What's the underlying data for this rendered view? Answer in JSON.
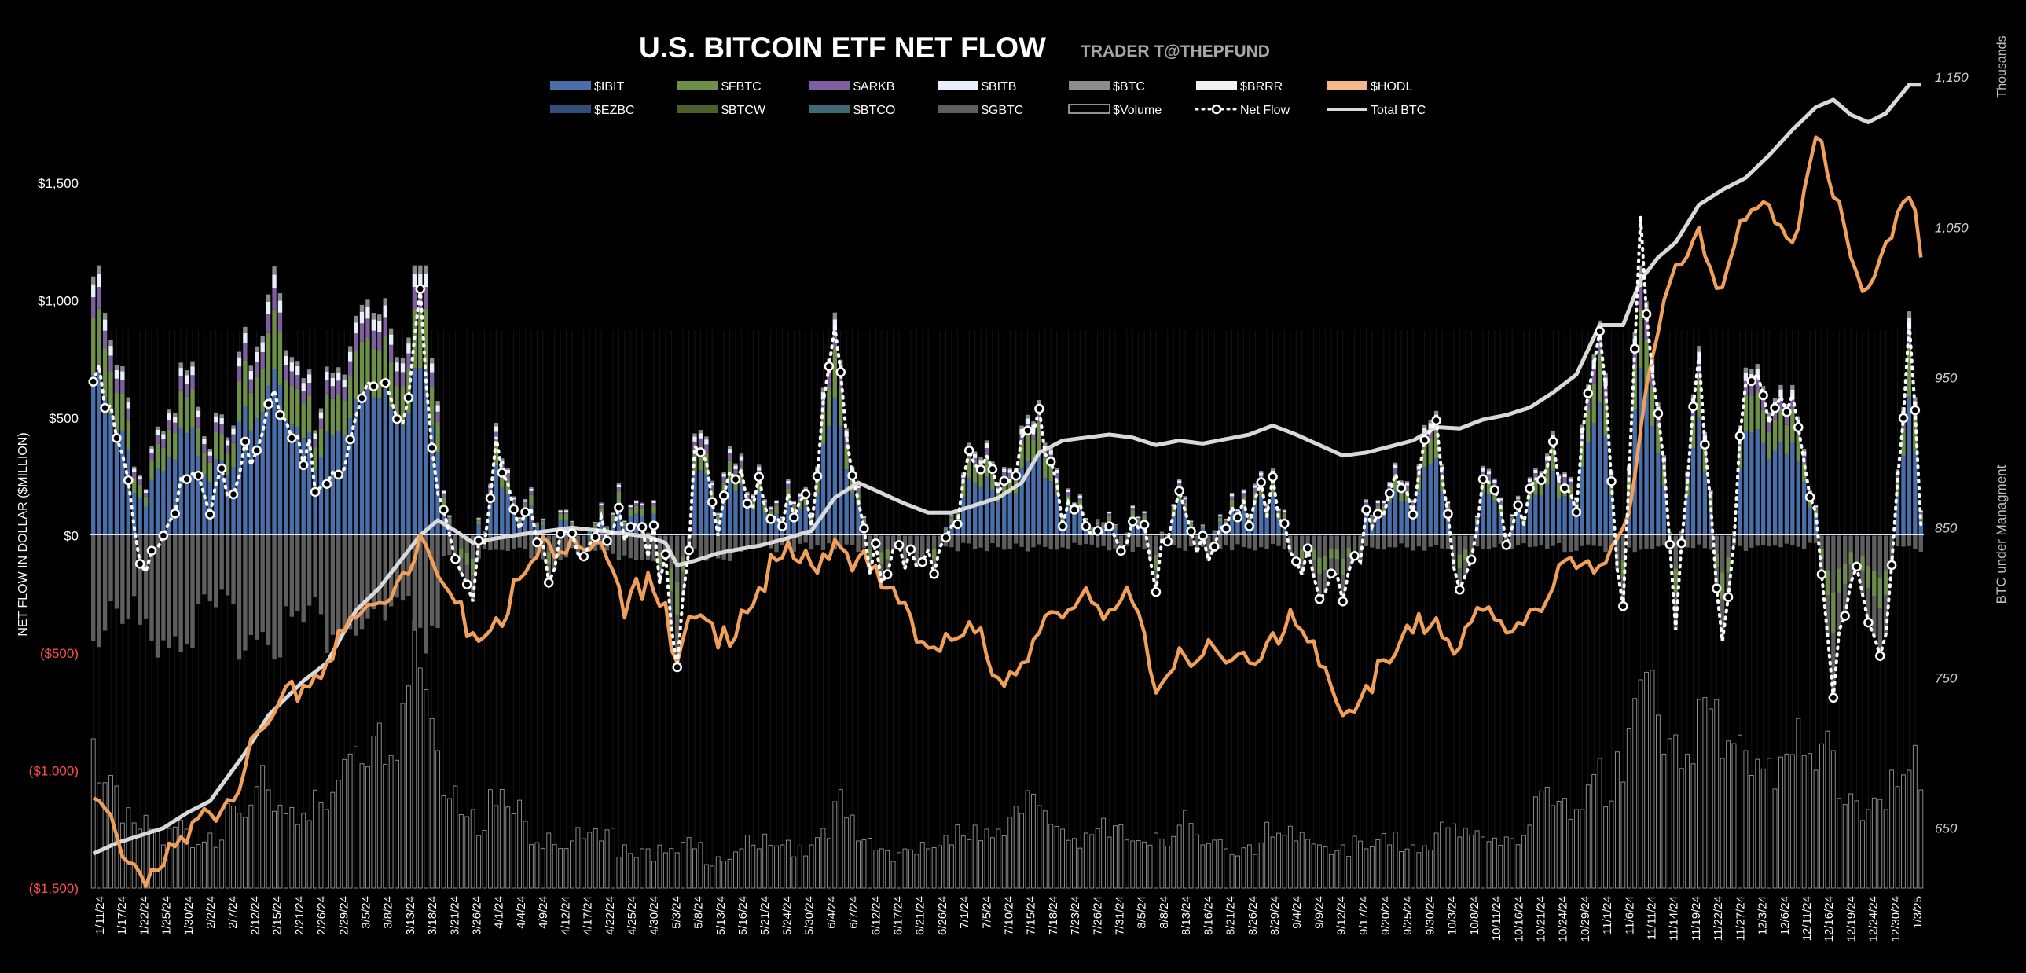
{
  "chart_data": {
    "type": "bar",
    "title": "U.S. BITCOIN ETF NET FLOW",
    "subtitle": "TRADER T@THEPFUND",
    "ylabel": "NET FLOW IN DOLLAR ($MILLION)",
    "y2label": "BTC under Managment",
    "y2unit": "Thousands",
    "ylim": [
      -1500,
      1500
    ],
    "y2lim": [
      610,
      1170
    ],
    "yticks": [
      {
        "v": 1500,
        "label": "$1,500"
      },
      {
        "v": 1000,
        "label": "$1,000"
      },
      {
        "v": 500,
        "label": "$500"
      },
      {
        "v": 0,
        "label": "$0"
      },
      {
        "v": -500,
        "label": "($500)"
      },
      {
        "v": -1000,
        "label": "($1,000)"
      },
      {
        "v": -1500,
        "label": "($1,500)"
      }
    ],
    "y2ticks": [
      {
        "v": 1150,
        "label": "1,150"
      },
      {
        "v": 1050,
        "label": "1,050"
      },
      {
        "v": 950,
        "label": "950"
      },
      {
        "v": 850,
        "label": "850"
      },
      {
        "v": 750,
        "label": "750"
      },
      {
        "v": 650,
        "label": "650"
      }
    ],
    "legend": [
      {
        "name": "$IBIT",
        "kind": "bar",
        "color": "#4a6fa8"
      },
      {
        "name": "$FBTC",
        "kind": "bar",
        "color": "#6e8f4a"
      },
      {
        "name": "$ARKB",
        "kind": "bar",
        "color": "#7d5e9e"
      },
      {
        "name": "$BITB",
        "kind": "bar",
        "color": "#e8eefa"
      },
      {
        "name": "$BTC",
        "kind": "bar",
        "color": "#8c8c8c"
      },
      {
        "name": "$BRRR",
        "kind": "bar",
        "color": "#f2f2f2"
      },
      {
        "name": "$HODL",
        "kind": "bar",
        "color": "#f2b98a"
      },
      {
        "name": "$EZBC",
        "kind": "bar",
        "color": "#2f4e7c"
      },
      {
        "name": "$BTCW",
        "kind": "bar",
        "color": "#4e5e2a"
      },
      {
        "name": "$BTCO",
        "kind": "bar",
        "color": "#3e6a78"
      },
      {
        "name": "$GBTC",
        "kind": "bar",
        "color": "#5e5e5e"
      },
      {
        "name": "$Volume",
        "kind": "outline",
        "color": "#bfbfbf"
      },
      {
        "name": "Net Flow",
        "kind": "dotline",
        "color": "#ffffff"
      },
      {
        "name": "Total BTC",
        "kind": "line",
        "color": "#d9d9d9"
      }
    ],
    "series_colors": {
      "total_btc": "#d9d9d9",
      "hodl_line": "#f0a05a",
      "net_flow": "#ffffff"
    },
    "x_labels": [
      "1/11/24",
      "1/17/24",
      "1/22/24",
      "1/25/24",
      "1/30/24",
      "2/2/24",
      "2/7/24",
      "2/12/24",
      "2/15/24",
      "2/21/24",
      "2/26/24",
      "2/29/24",
      "3/5/24",
      "3/8/24",
      "3/13/24",
      "3/18/24",
      "3/21/24",
      "3/26/24",
      "4/1/24",
      "4/4/24",
      "4/9/24",
      "4/12/24",
      "4/17/24",
      "4/22/24",
      "4/25/24",
      "4/30/24",
      "5/3/24",
      "5/8/24",
      "5/13/24",
      "5/16/24",
      "5/21/24",
      "5/24/24",
      "5/30/24",
      "6/4/24",
      "6/7/24",
      "6/12/24",
      "6/17/24",
      "6/21/24",
      "6/26/24",
      "7/1/24",
      "7/5/24",
      "7/10/24",
      "7/15/24",
      "7/18/24",
      "7/23/24",
      "7/26/24",
      "7/31/24",
      "8/5/24",
      "8/8/24",
      "8/13/24",
      "8/16/24",
      "8/21/24",
      "8/26/24",
      "8/29/24",
      "9/4/24",
      "9/9/24",
      "9/12/24",
      "9/17/24",
      "9/20/24",
      "9/25/24",
      "9/30/24",
      "10/3/24",
      "10/8/24",
      "10/11/24",
      "10/16/24",
      "10/21/24",
      "10/24/24",
      "10/29/24",
      "11/1/24",
      "11/6/24",
      "11/11/24",
      "11/14/24",
      "11/19/24",
      "11/22/24",
      "11/27/24",
      "12/3/24",
      "12/6/24",
      "12/11/24",
      "12/16/24",
      "12/19/24",
      "12/24/24",
      "12/30/24",
      "1/3/25"
    ],
    "keypoints": [
      {
        "i": 0,
        "net": 655,
        "btc": 633,
        "vol": 380,
        "hodl": 670
      },
      {
        "i": 4,
        "net": 415,
        "btc": 640,
        "vol": 260,
        "hodl": 645
      },
      {
        "i": 8,
        "net": -120,
        "btc": 645,
        "vol": 150,
        "hodl": 620
      },
      {
        "i": 12,
        "net": 0,
        "btc": 650,
        "vol": 110,
        "hodl": 625
      },
      {
        "i": 16,
        "net": 240,
        "btc": 660,
        "vol": 150,
        "hodl": 640
      },
      {
        "i": 20,
        "net": 90,
        "btc": 668,
        "vol": 140,
        "hodl": 660
      },
      {
        "i": 26,
        "net": 400,
        "btc": 700,
        "vol": 180,
        "hodl": 690
      },
      {
        "i": 30,
        "net": 560,
        "btc": 725,
        "vol": 250,
        "hodl": 720
      },
      {
        "i": 36,
        "net": 300,
        "btc": 748,
        "vol": 190,
        "hodl": 745
      },
      {
        "i": 40,
        "net": 220,
        "btc": 760,
        "vol": 200,
        "hodl": 760
      },
      {
        "i": 45,
        "net": 510,
        "btc": 795,
        "vol": 360,
        "hodl": 790
      },
      {
        "i": 49,
        "net": 650,
        "btc": 810,
        "vol": 420,
        "hodl": 800
      },
      {
        "i": 53,
        "net": 480,
        "btc": 830,
        "vol": 470,
        "hodl": 820
      },
      {
        "i": 56,
        "net": 1050,
        "btc": 845,
        "vol": 560,
        "hodl": 845
      },
      {
        "i": 59,
        "net": 180,
        "btc": 855,
        "vol": 350,
        "hodl": 818
      },
      {
        "i": 62,
        "net": -100,
        "btc": 848,
        "vol": 260,
        "hodl": 800
      },
      {
        "i": 65,
        "net": -280,
        "btc": 840,
        "vol": 200,
        "hodl": 780
      },
      {
        "i": 69,
        "net": 420,
        "btc": 843,
        "vol": 210,
        "hodl": 790
      },
      {
        "i": 74,
        "net": 100,
        "btc": 846,
        "vol": 170,
        "hodl": 820
      },
      {
        "i": 78,
        "net": -200,
        "btc": 848,
        "vol": 140,
        "hodl": 840
      },
      {
        "i": 82,
        "net": 10,
        "btc": 850,
        "vol": 120,
        "hodl": 845
      },
      {
        "i": 87,
        "net": 80,
        "btc": 848,
        "vol": 120,
        "hodl": 840
      },
      {
        "i": 91,
        "net": -20,
        "btc": 846,
        "vol": 110,
        "hodl": 790
      },
      {
        "i": 95,
        "net": -90,
        "btc": 844,
        "vol": 100,
        "hodl": 820
      },
      {
        "i": 98,
        "net": -80,
        "btc": 840,
        "vol": 90,
        "hodl": 800
      },
      {
        "i": 100,
        "net": -560,
        "btc": 825,
        "vol": 90,
        "hodl": 760
      },
      {
        "i": 103,
        "net": 380,
        "btc": 828,
        "vol": 100,
        "hodl": 790
      },
      {
        "i": 107,
        "net": 0,
        "btc": 833,
        "vol": 80,
        "hodl": 770
      },
      {
        "i": 111,
        "net": 280,
        "btc": 836,
        "vol": 100,
        "hodl": 795
      },
      {
        "i": 114,
        "net": 250,
        "btc": 838,
        "vol": 100,
        "hodl": 810
      },
      {
        "i": 118,
        "net": 40,
        "btc": 842,
        "vol": 110,
        "hodl": 830
      },
      {
        "i": 123,
        "net": 40,
        "btc": 848,
        "vol": 110,
        "hodl": 825
      },
      {
        "i": 127,
        "net": 890,
        "btc": 870,
        "vol": 220,
        "hodl": 842
      },
      {
        "i": 131,
        "net": 150,
        "btc": 880,
        "vol": 120,
        "hodl": 830
      },
      {
        "i": 135,
        "net": -200,
        "btc": 873,
        "vol": 100,
        "hodl": 810
      },
      {
        "i": 139,
        "net": -140,
        "btc": 866,
        "vol": 100,
        "hodl": 800
      },
      {
        "i": 143,
        "net": -60,
        "btc": 860,
        "vol": 100,
        "hodl": 770
      },
      {
        "i": 147,
        "net": 40,
        "btc": 860,
        "vol": 110,
        "hodl": 775
      },
      {
        "i": 151,
        "net": 300,
        "btc": 865,
        "vol": 160,
        "hodl": 780
      },
      {
        "i": 155,
        "net": 180,
        "btc": 870,
        "vol": 150,
        "hodl": 750
      },
      {
        "i": 159,
        "net": 420,
        "btc": 880,
        "vol": 190,
        "hodl": 760
      },
      {
        "i": 162,
        "net": 540,
        "btc": 900,
        "vol": 210,
        "hodl": 780
      },
      {
        "i": 166,
        "net": 40,
        "btc": 908,
        "vol": 150,
        "hodl": 790
      },
      {
        "i": 170,
        "net": 40,
        "btc": 910,
        "vol": 140,
        "hodl": 810
      },
      {
        "i": 174,
        "net": 40,
        "btc": 912,
        "vol": 130,
        "hodl": 795
      },
      {
        "i": 178,
        "net": 60,
        "btc": 910,
        "vol": 120,
        "hodl": 800
      },
      {
        "i": 182,
        "net": -240,
        "btc": 905,
        "vol": 140,
        "hodl": 740
      },
      {
        "i": 186,
        "net": 190,
        "btc": 908,
        "vol": 160,
        "hodl": 770
      },
      {
        "i": 190,
        "net": 0,
        "btc": 906,
        "vol": 110,
        "hodl": 765
      },
      {
        "i": 194,
        "net": 30,
        "btc": 909,
        "vol": 100,
        "hodl": 760
      },
      {
        "i": 198,
        "net": 40,
        "btc": 912,
        "vol": 110,
        "hodl": 760
      },
      {
        "i": 202,
        "net": 250,
        "btc": 918,
        "vol": 130,
        "hodl": 780
      },
      {
        "i": 206,
        "net": -110,
        "btc": 912,
        "vol": 120,
        "hodl": 785
      },
      {
        "i": 210,
        "net": -270,
        "btc": 905,
        "vol": 110,
        "hodl": 758
      },
      {
        "i": 214,
        "net": -280,
        "btc": 898,
        "vol": 110,
        "hodl": 725
      },
      {
        "i": 218,
        "net": 110,
        "btc": 900,
        "vol": 100,
        "hodl": 745
      },
      {
        "i": 222,
        "net": 180,
        "btc": 904,
        "vol": 110,
        "hodl": 760
      },
      {
        "i": 226,
        "net": 90,
        "btc": 908,
        "vol": 110,
        "hodl": 780
      },
      {
        "i": 230,
        "net": 490,
        "btc": 917,
        "vol": 140,
        "hodl": 790
      },
      {
        "i": 234,
        "net": -230,
        "btc": 916,
        "vol": 130,
        "hodl": 770
      },
      {
        "i": 238,
        "net": 240,
        "btc": 922,
        "vol": 130,
        "hodl": 795
      },
      {
        "i": 242,
        "net": -40,
        "btc": 925,
        "vol": 130,
        "hodl": 780
      },
      {
        "i": 246,
        "net": 200,
        "btc": 930,
        "vol": 160,
        "hodl": 795
      },
      {
        "i": 250,
        "net": 400,
        "btc": 940,
        "vol": 210,
        "hodl": 810
      },
      {
        "i": 254,
        "net": 100,
        "btc": 952,
        "vol": 200,
        "hodl": 823
      },
      {
        "i": 258,
        "net": 870,
        "btc": 985,
        "vol": 330,
        "hodl": 825
      },
      {
        "i": 262,
        "net": -300,
        "btc": 985,
        "vol": 270,
        "hodl": 850
      },
      {
        "i": 265,
        "net": 1360,
        "btc": 1015,
        "vol": 530,
        "hodl": 915
      },
      {
        "i": 268,
        "net": 520,
        "btc": 1030,
        "vol": 440,
        "hodl": 980
      },
      {
        "i": 271,
        "net": -400,
        "btc": 1040,
        "vol": 390,
        "hodl": 1025
      },
      {
        "i": 275,
        "net": 770,
        "btc": 1065,
        "vol": 480,
        "hodl": 1050
      },
      {
        "i": 279,
        "net": -450,
        "btc": 1075,
        "vol": 330,
        "hodl": 1010
      },
      {
        "i": 283,
        "net": 650,
        "btc": 1083,
        "vol": 350,
        "hodl": 1055
      },
      {
        "i": 287,
        "net": 480,
        "btc": 1098,
        "vol": 330,
        "hodl": 1065
      },
      {
        "i": 291,
        "net": 600,
        "btc": 1115,
        "vol": 340,
        "hodl": 1040
      },
      {
        "i": 295,
        "net": 100,
        "btc": 1130,
        "vol": 300,
        "hodl": 1110
      },
      {
        "i": 298,
        "net": -690,
        "btc": 1135,
        "vol": 350,
        "hodl": 1070
      },
      {
        "i": 301,
        "net": -200,
        "btc": 1125,
        "vol": 240,
        "hodl": 1030
      },
      {
        "i": 304,
        "net": -370,
        "btc": 1120,
        "vol": 200,
        "hodl": 1010
      },
      {
        "i": 307,
        "net": -420,
        "btc": 1126,
        "vol": 200,
        "hodl": 1040
      },
      {
        "i": 311,
        "net": 910,
        "btc": 1145,
        "vol": 300,
        "hodl": 1070
      },
      {
        "i": 313,
        "net": 40,
        "btc": 1145,
        "vol": 250,
        "hodl": 1030
      }
    ]
  }
}
